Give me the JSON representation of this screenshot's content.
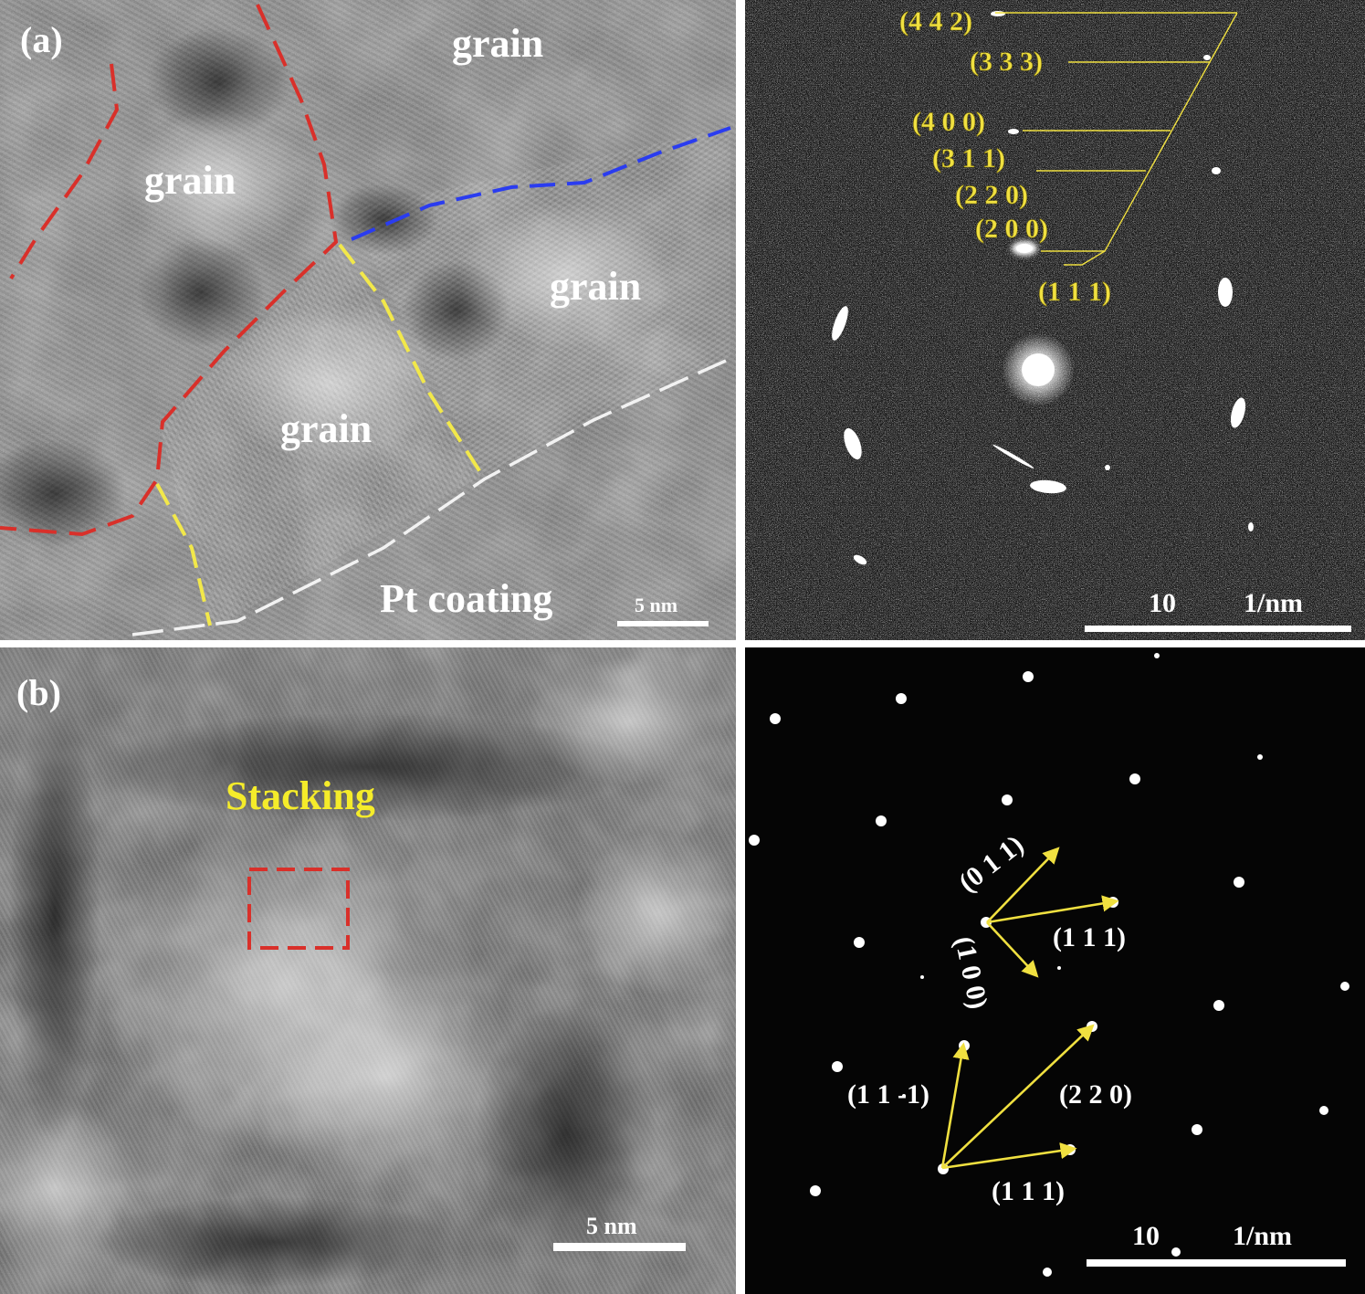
{
  "panel_a": {
    "label": "(a)",
    "grain_label": "grain",
    "pt_coating_label": "Pt coating",
    "scale_bar_text": "5 nm",
    "diffraction": {
      "rings": [
        "(4 4 2)",
        "(3 3 3)",
        "(4 0 0)",
        "(3 1 1)",
        "(2 2 0)",
        "(2 0 0)",
        "(1 1 1)"
      ],
      "scale_left": "10",
      "scale_right": "1/nm"
    }
  },
  "panel_b": {
    "label": "(b)",
    "stacking_label": "Stacking",
    "scale_bar_text": "5 nm",
    "diffraction": {
      "vec_011": "(0 1 1)",
      "vec_111_upper": "(1 1 1)",
      "vec_100": "(1 0 0)",
      "vec_11m1": "(1 1 -1)",
      "vec_220": "(2 2 0)",
      "vec_111_lower": "(1 1 1)",
      "scale_left": "10",
      "scale_right": "1/nm"
    }
  },
  "colors": {
    "boundary_red": "#d9302a",
    "boundary_blue": "#2a3cf0",
    "boundary_yellow": "#f2e84a",
    "boundary_white": "#f2f2f2",
    "annotation_yellow": "#f0e040",
    "label_white": "#ffffff",
    "stacking_yellow": "#f5ec2a"
  }
}
